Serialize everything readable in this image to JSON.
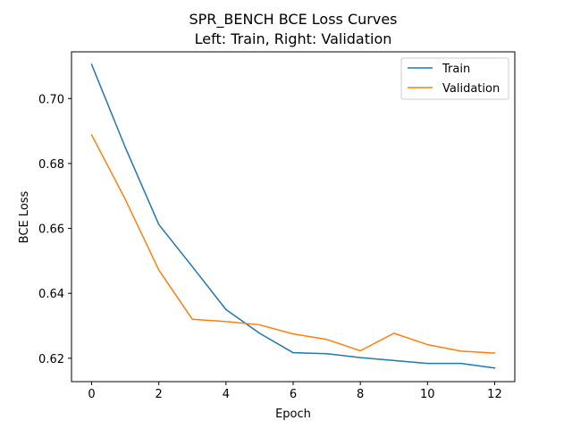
{
  "chart_data": {
    "type": "line",
    "title": "SPR_BENCH BCE Loss Curves",
    "subtitle": "Left: Train, Right: Validation",
    "xlabel": "Epoch",
    "ylabel": "BCE Loss",
    "xlim": [
      -0.6,
      12.6
    ],
    "ylim": [
      0.6128,
      0.7144
    ],
    "xticks": [
      0,
      2,
      4,
      6,
      8,
      10,
      12
    ],
    "yticks": [
      0.62,
      0.64,
      0.66,
      0.68,
      0.7
    ],
    "ytick_labels": [
      "0.62",
      "0.64",
      "0.66",
      "0.68",
      "0.70"
    ],
    "grid": false,
    "legend_position": "top-right",
    "x": [
      0,
      1,
      2,
      3,
      4,
      5,
      6,
      7,
      8,
      9,
      10,
      11,
      12
    ],
    "series": [
      {
        "name": "Train",
        "color": "#1f77b4",
        "values": [
          0.7105,
          0.685,
          0.6612,
          0.6482,
          0.635,
          0.6277,
          0.6217,
          0.6214,
          0.6202,
          0.6193,
          0.6184,
          0.6184,
          0.617
        ]
      },
      {
        "name": "Validation",
        "color": "#ff7f0e",
        "values": [
          0.6888,
          0.669,
          0.6472,
          0.632,
          0.6313,
          0.6303,
          0.6275,
          0.6258,
          0.6223,
          0.6277,
          0.6242,
          0.6222,
          0.6216
        ]
      }
    ]
  }
}
